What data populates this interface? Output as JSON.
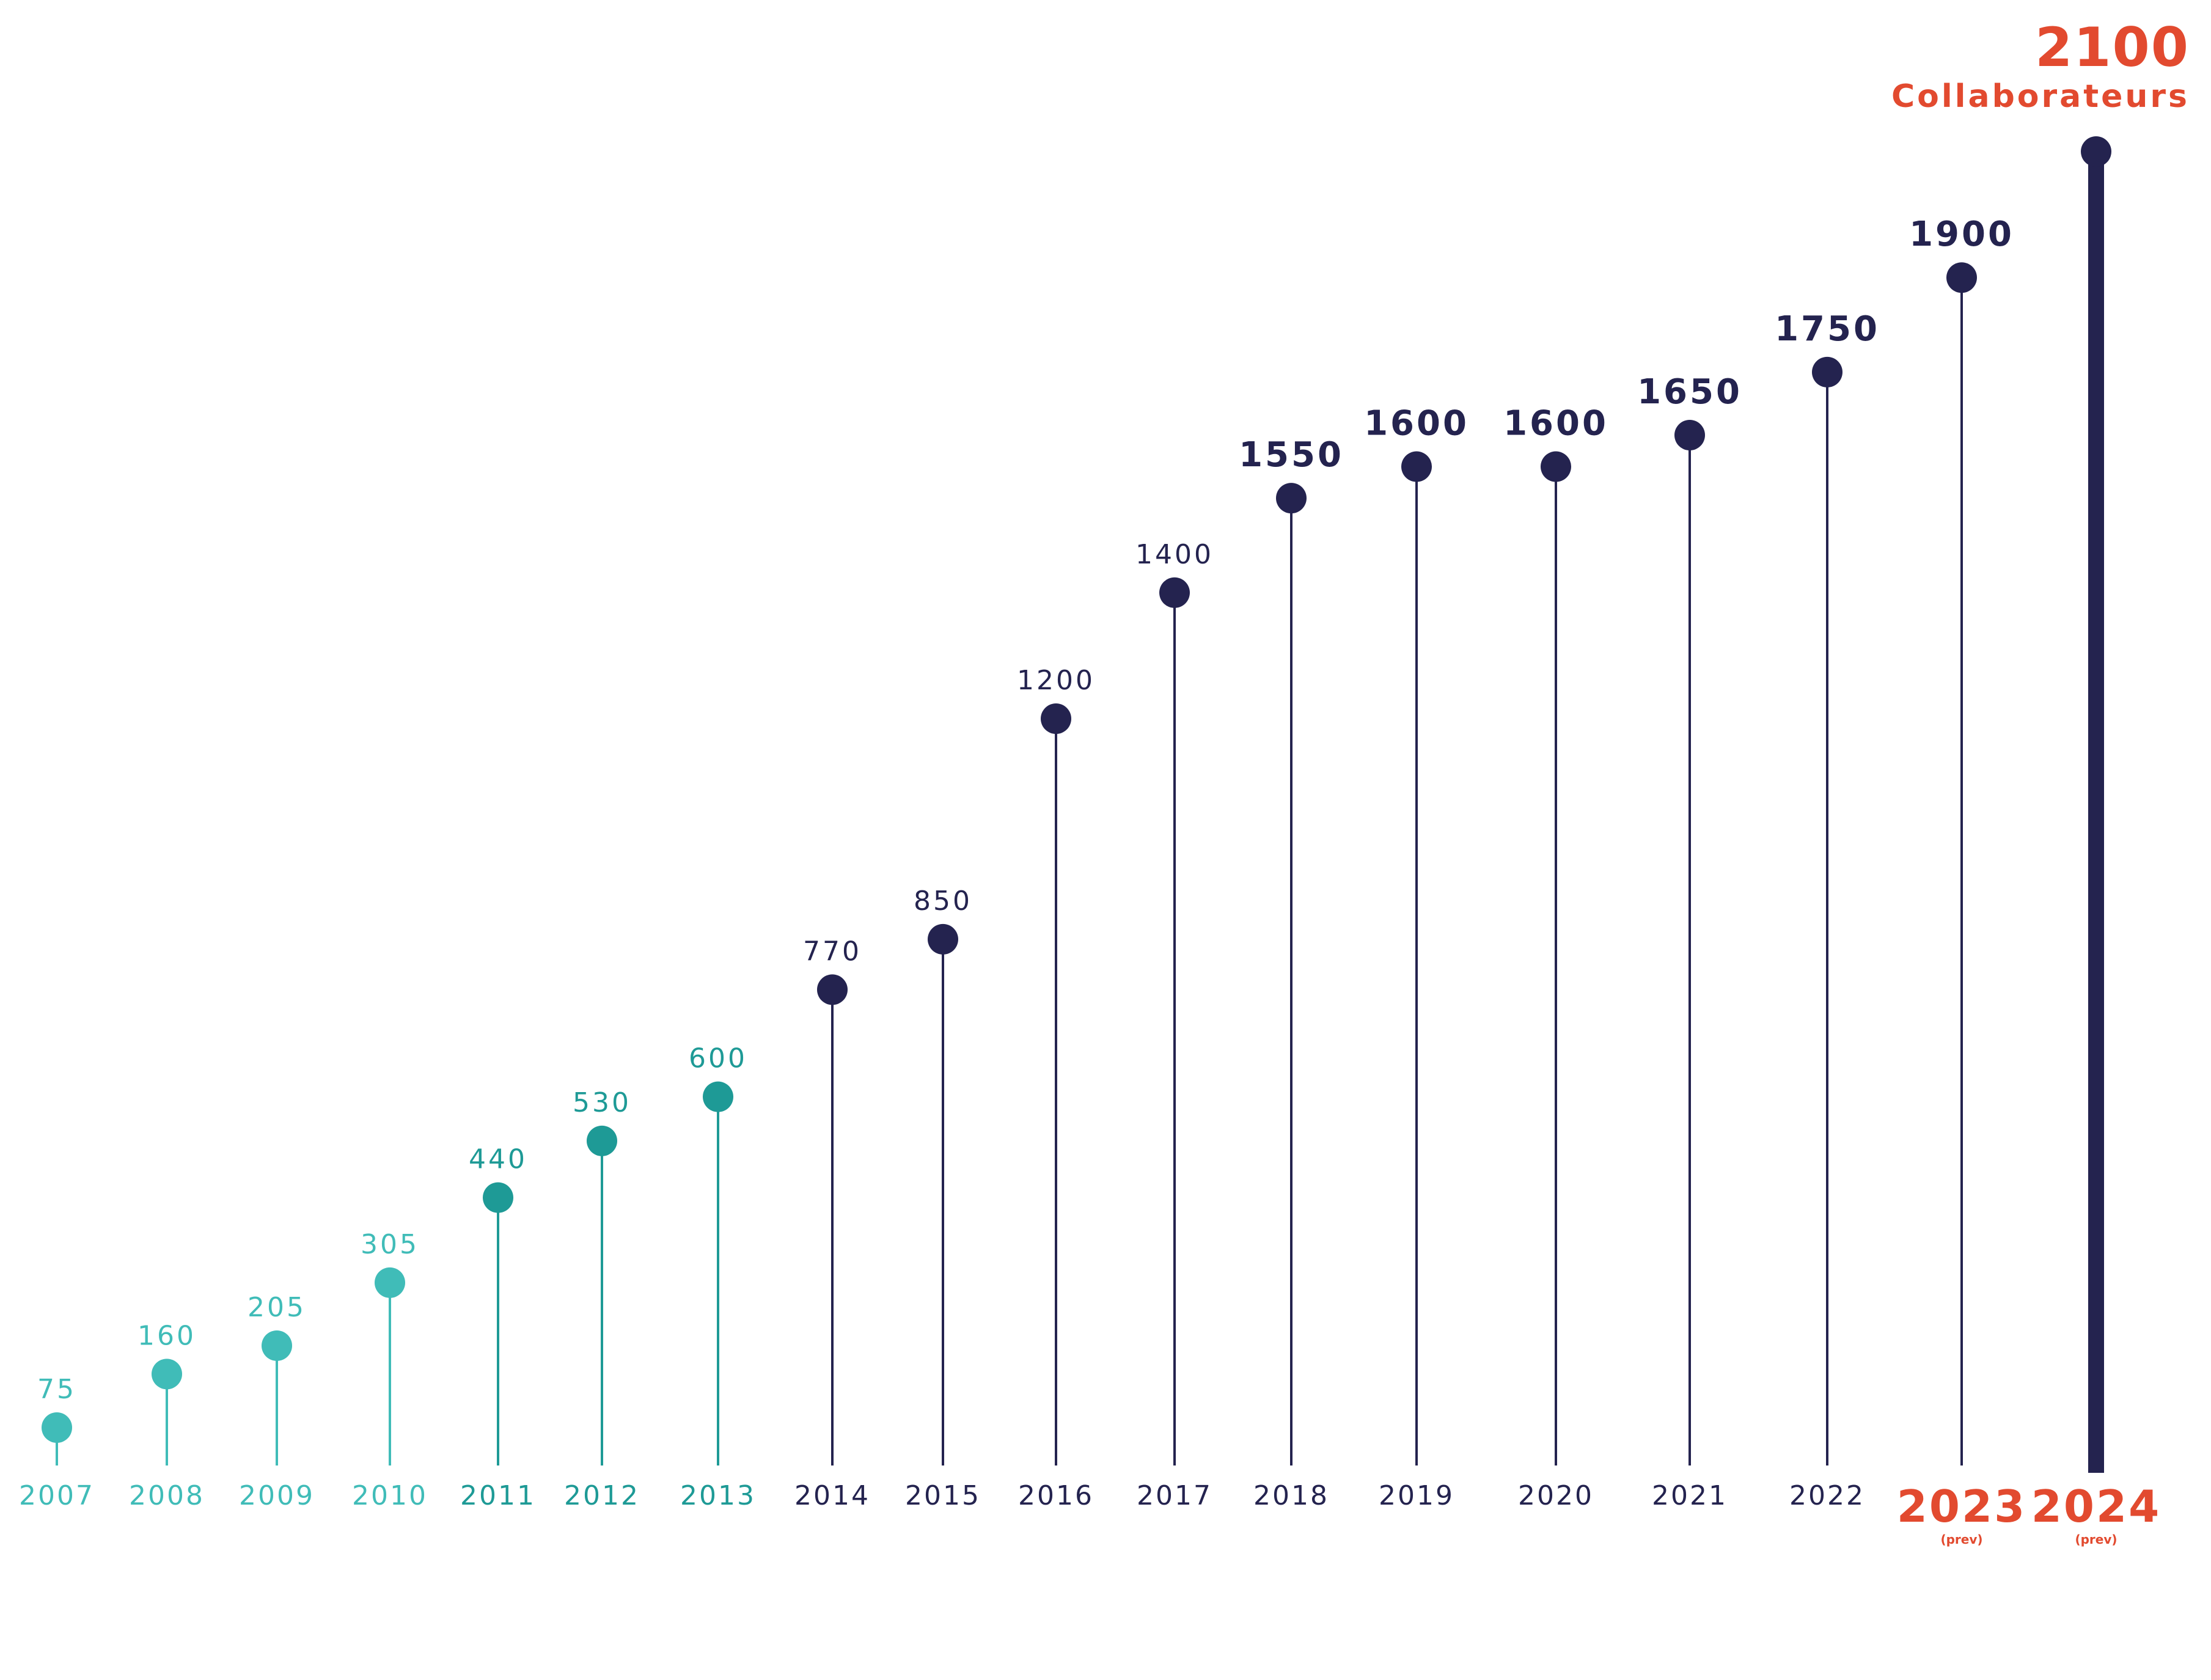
{
  "headline": {
    "value": "2100",
    "label": "Collaborateurs"
  },
  "chart_data": {
    "type": "lollipop",
    "title": "",
    "xlabel": "",
    "ylabel": "",
    "ylim": [
      0,
      2100
    ],
    "grid": false,
    "legend": "none",
    "points": [
      {
        "year": "2007",
        "value": 75,
        "label": "75",
        "group": "light"
      },
      {
        "year": "2008",
        "value": 160,
        "label": "160",
        "group": "light"
      },
      {
        "year": "2009",
        "value": 205,
        "label": "205",
        "group": "light"
      },
      {
        "year": "2010",
        "value": 305,
        "label": "305",
        "group": "light"
      },
      {
        "year": "2011",
        "value": 440,
        "label": "440",
        "group": "teal"
      },
      {
        "year": "2012",
        "value": 530,
        "label": "530",
        "group": "teal"
      },
      {
        "year": "2013",
        "value": 600,
        "label": "600",
        "group": "teal"
      },
      {
        "year": "2014",
        "value": 770,
        "label": "770",
        "group": "navy"
      },
      {
        "year": "2015",
        "value": 850,
        "label": "850",
        "group": "navy"
      },
      {
        "year": "2016",
        "value": 1200,
        "label": "1200",
        "group": "navy"
      },
      {
        "year": "2017",
        "value": 1400,
        "label": "1400",
        "group": "navy"
      },
      {
        "year": "2018",
        "value": 1550,
        "label": "1550",
        "group": "navy"
      },
      {
        "year": "2019",
        "value": 1600,
        "label": "1600",
        "group": "navy"
      },
      {
        "year": "2020",
        "value": 1600,
        "label": "1600",
        "group": "navy"
      },
      {
        "year": "2021",
        "value": 1650,
        "label": "1650",
        "group": "navy"
      },
      {
        "year": "2022",
        "value": 1750,
        "label": "1750",
        "group": "navy"
      },
      {
        "year": "2023",
        "value": 1900,
        "label": "1900",
        "group": "navy",
        "note": "(prev)",
        "forecast": true
      },
      {
        "year": "2024",
        "value": 2100,
        "label": "",
        "group": "navy",
        "note": "(prev)",
        "forecast": true,
        "highlight": true
      }
    ]
  },
  "colors": {
    "light": "#40bcb8",
    "teal": "#1e9a96",
    "navy": "#24234f",
    "accent": "#e24a2f"
  }
}
